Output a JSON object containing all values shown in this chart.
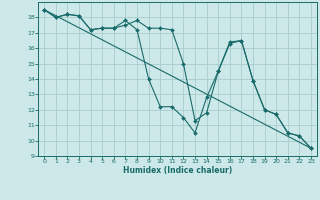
{
  "background_color": "#cce8e8",
  "grid_color": "#aacccc",
  "line_color": "#1a6b6b",
  "marker_color": "#1a6b6b",
  "xlabel": "Humidex (Indice chaleur)",
  "ylim": [
    9,
    19
  ],
  "xlim": [
    -0.5,
    23.5
  ],
  "yticks": [
    9,
    10,
    11,
    12,
    13,
    14,
    15,
    16,
    17,
    18
  ],
  "xticks": [
    0,
    1,
    2,
    3,
    4,
    5,
    6,
    7,
    8,
    9,
    10,
    11,
    12,
    13,
    14,
    15,
    16,
    17,
    18,
    19,
    20,
    21,
    22,
    23
  ],
  "line1_x": [
    0,
    1,
    2,
    3,
    4,
    5,
    6,
    7,
    8,
    9,
    10,
    11,
    12,
    13,
    14,
    15,
    16,
    17,
    18,
    19,
    20,
    21,
    22,
    23
  ],
  "line1_y": [
    18.5,
    18.0,
    18.2,
    18.1,
    17.2,
    17.3,
    17.3,
    17.8,
    17.2,
    14.0,
    12.2,
    12.2,
    11.5,
    10.5,
    12.8,
    14.5,
    16.3,
    16.5,
    13.9,
    12.0,
    11.7,
    10.5,
    10.3,
    9.5
  ],
  "line2_x": [
    0,
    1,
    2,
    3,
    4,
    5,
    6,
    7,
    8,
    9,
    10,
    11,
    12,
    13,
    14,
    15,
    16,
    17,
    18,
    19,
    20,
    21,
    22,
    23
  ],
  "line2_y": [
    18.5,
    18.0,
    18.2,
    18.1,
    17.2,
    17.3,
    17.3,
    17.5,
    17.8,
    17.3,
    17.3,
    17.2,
    15.0,
    11.3,
    11.8,
    14.5,
    16.4,
    16.5,
    13.9,
    12.0,
    11.7,
    10.5,
    10.3,
    9.5
  ],
  "line3_x": [
    0,
    23
  ],
  "line3_y": [
    18.5,
    9.5
  ]
}
